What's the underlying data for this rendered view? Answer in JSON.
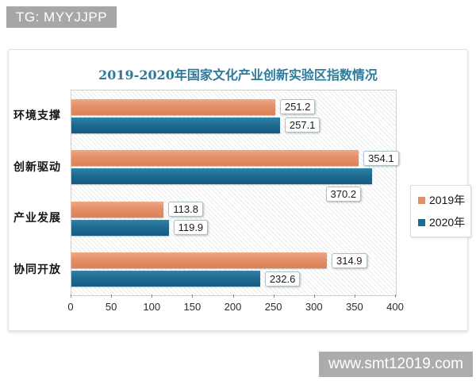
{
  "banner": {
    "text": "TG: MYYJJPP"
  },
  "watermark": {
    "text": "www.smt12019.com"
  },
  "chart_data": {
    "type": "bar",
    "orientation": "horizontal",
    "title": "2019-2020年国家文化产业创新实验区指数情况",
    "title_color": "#2e7a99",
    "categories": [
      "环境支撑",
      "创新驱动",
      "产业发展",
      "协同开放"
    ],
    "series": [
      {
        "name": "2019年",
        "color": "#e58f69",
        "values": [
          251.2,
          354.1,
          113.8,
          314.9
        ]
      },
      {
        "name": "2020年",
        "color": "#1f6a91",
        "values": [
          257.1,
          370.2,
          119.9,
          232.6
        ]
      }
    ],
    "xlim": [
      0,
      400
    ],
    "x_ticks": [
      0,
      50,
      100,
      150,
      200,
      250,
      300,
      350,
      400
    ],
    "legend_position": "right-middle",
    "grid": false,
    "plot_background": "white-diagonal-hatch",
    "data_labels": true
  }
}
